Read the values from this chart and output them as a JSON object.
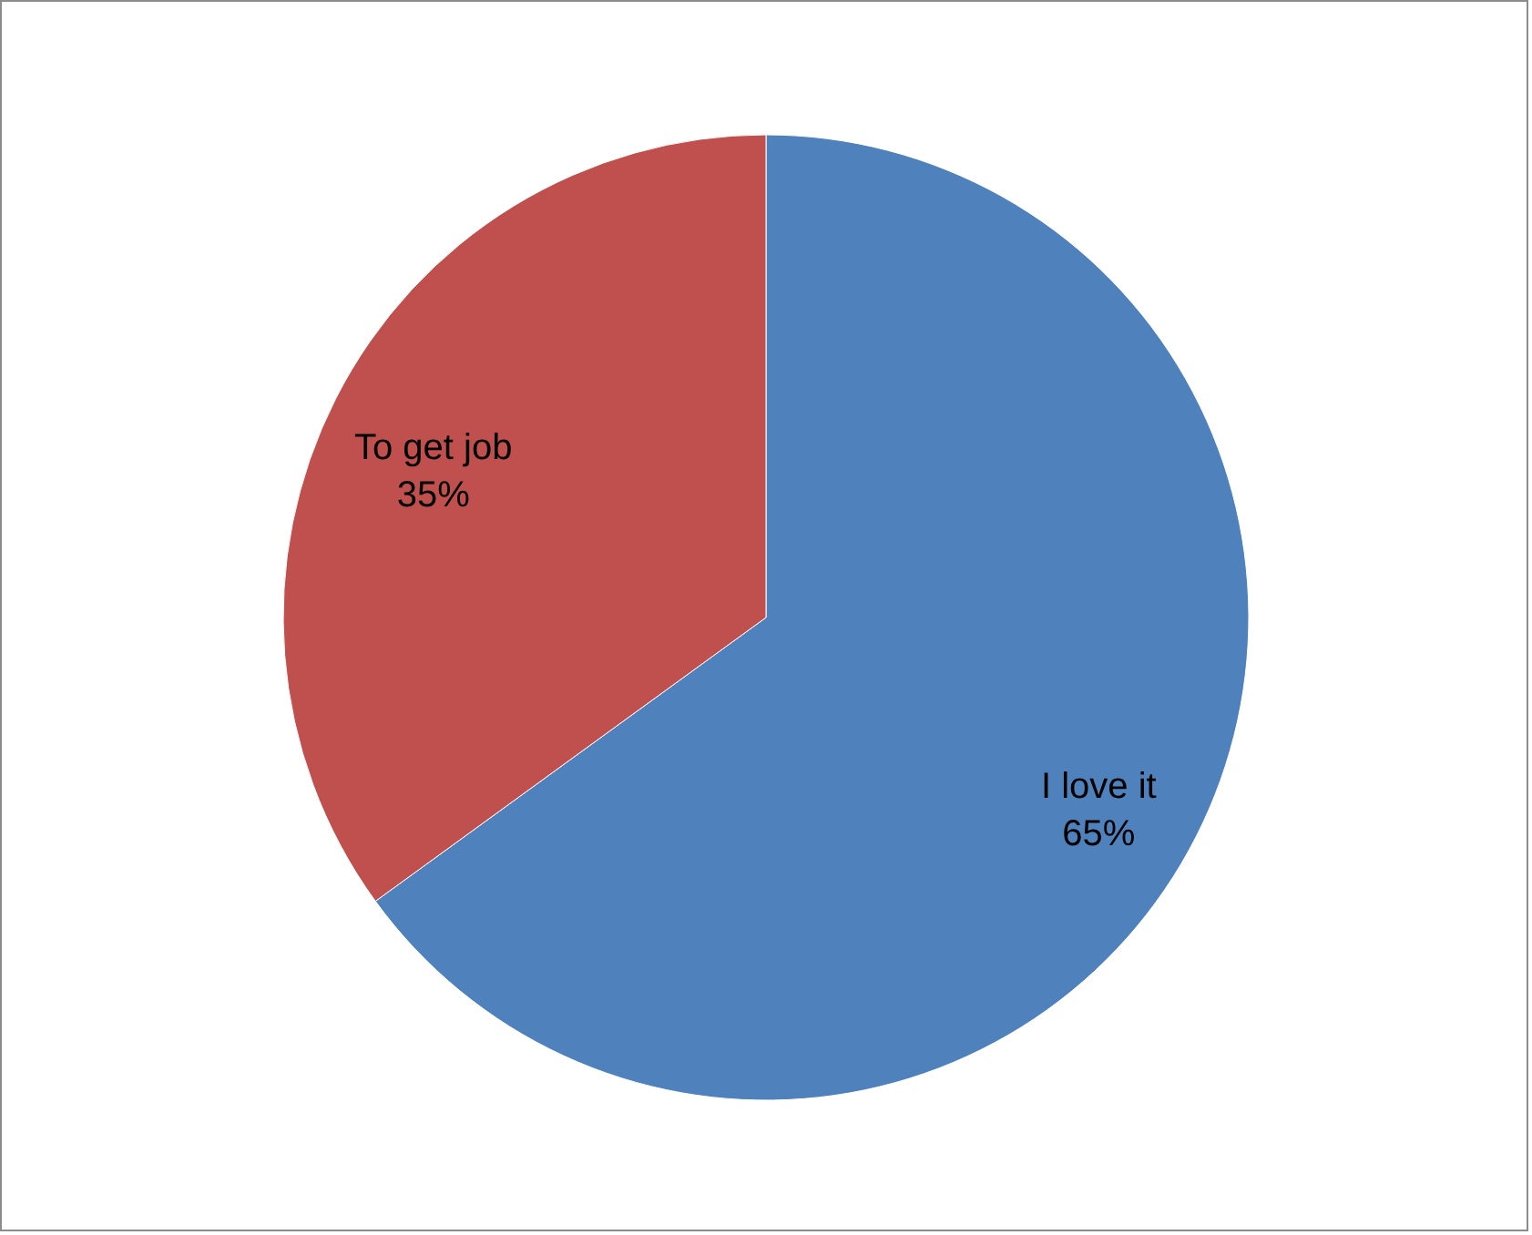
{
  "chart_data": {
    "type": "pie",
    "categories": [
      "I love it",
      "To get job"
    ],
    "values": [
      65,
      35
    ],
    "colors": [
      "#4f81bd",
      "#c0504d"
    ],
    "value_labels": [
      "65%",
      "35%"
    ]
  }
}
